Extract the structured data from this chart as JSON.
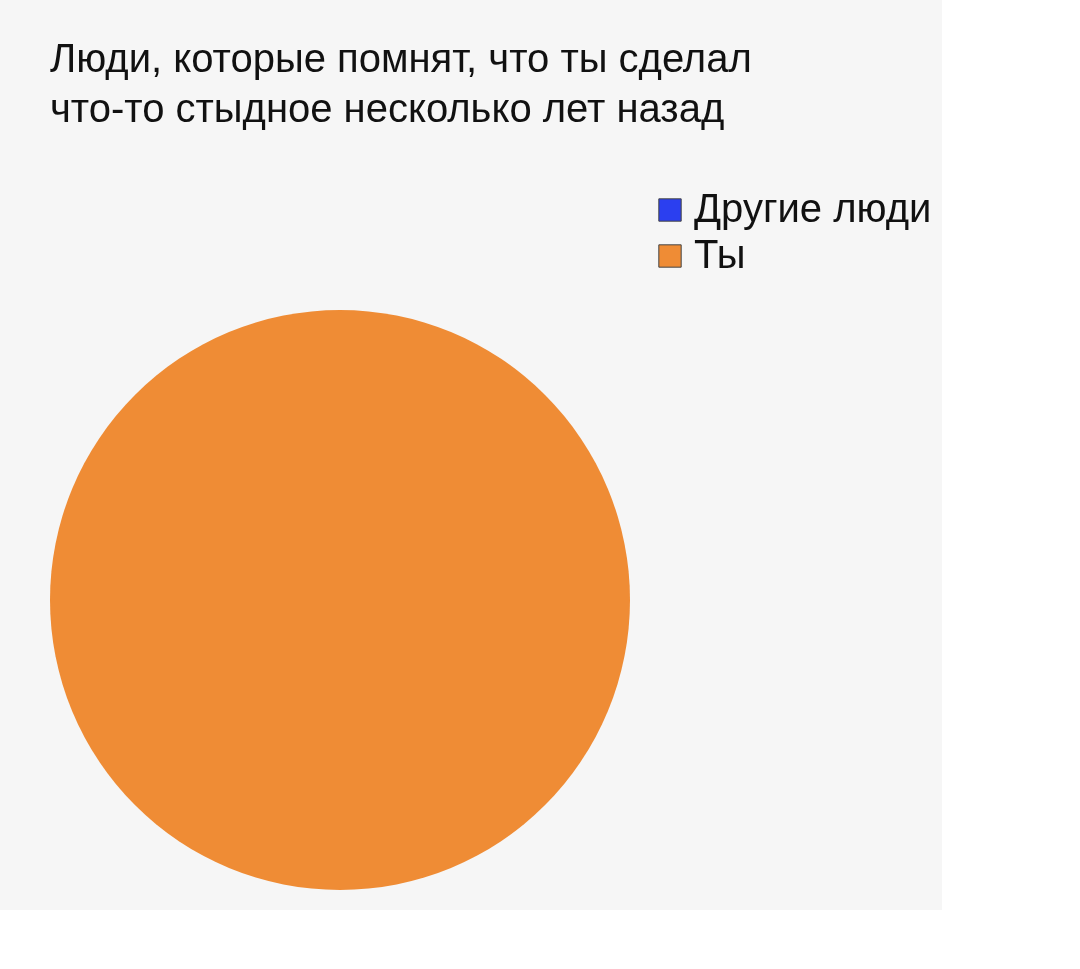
{
  "chart_data": {
    "type": "pie",
    "title": "Люди, которые помнят, что ты сделал\nчто-то стыдное несколько лет назад",
    "categories": [
      "Другие люди",
      "Ты"
    ],
    "values": [
      0,
      100
    ],
    "colors": [
      "#2b3ff0",
      "#ef8c35"
    ],
    "legend": "top right"
  }
}
